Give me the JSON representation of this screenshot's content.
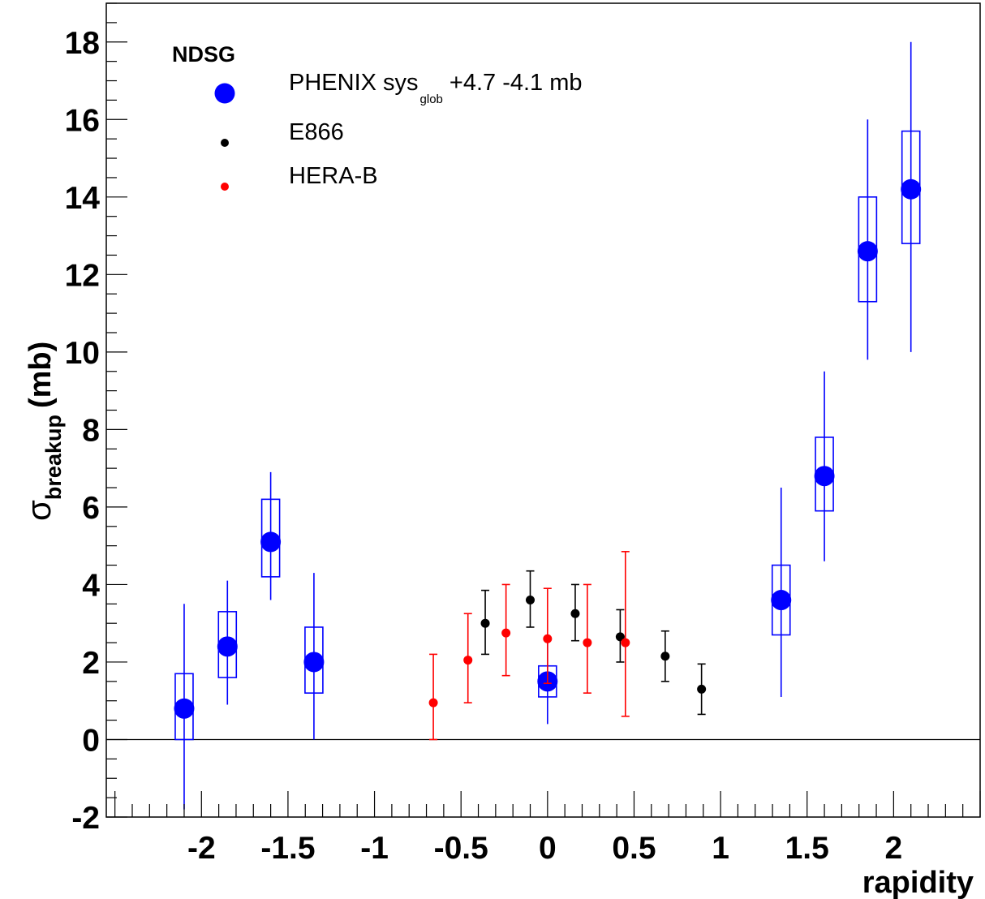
{
  "chart_data": {
    "type": "scatter",
    "title": "",
    "xlabel": "rapidity",
    "ylabel": {
      "symbol": "σ",
      "subscript": "breakup",
      "unit": "(mb)"
    },
    "xlim": [
      -2.55,
      2.5
    ],
    "ylim": [
      -2,
      19
    ],
    "x_ticks": [
      -2,
      -1.5,
      -1,
      -0.5,
      0,
      0.5,
      1,
      1.5,
      2
    ],
    "x_tick_labels": [
      "-2",
      "-1.5",
      "-1",
      "-0.5",
      "0",
      "0.5",
      "1",
      "1.5",
      "2"
    ],
    "y_ticks": [
      -2,
      0,
      2,
      4,
      6,
      8,
      10,
      12,
      14,
      16,
      18
    ],
    "y_tick_labels": [
      "-2",
      "0",
      "2",
      "4",
      "6",
      "8",
      "10",
      "12",
      "14",
      "16",
      "18"
    ],
    "zero_line": true,
    "grid": false,
    "legend": {
      "placement": "top-left",
      "header": "NDSG",
      "entries": [
        {
          "name": "PHENIX sys",
          "subscript": "glob",
          "suffix": "+4.7 -4.1 mb",
          "series": 0
        },
        {
          "name": "E866",
          "series": 1
        },
        {
          "name": "HERA-B",
          "series": 2
        }
      ]
    },
    "series": [
      {
        "name": "PHENIX",
        "color": "#0000ff",
        "marker": "large-circle",
        "points": [
          {
            "x": -2.1,
            "y": 0.8,
            "yerr_low": -1.8,
            "yerr_high": 3.5,
            "sys_low": 0.0,
            "sys_high": 1.7
          },
          {
            "x": -1.85,
            "y": 2.4,
            "yerr_low": 0.9,
            "yerr_high": 4.1,
            "sys_low": 1.6,
            "sys_high": 3.3
          },
          {
            "x": -1.6,
            "y": 5.1,
            "yerr_low": 3.6,
            "yerr_high": 6.9,
            "sys_low": 4.2,
            "sys_high": 6.2
          },
          {
            "x": -1.35,
            "y": 2.0,
            "yerr_low": 0.0,
            "yerr_high": 4.3,
            "sys_low": 1.2,
            "sys_high": 2.9
          },
          {
            "x": 0.0,
            "y": 1.5,
            "yerr_low": 0.4,
            "yerr_high": 2.6,
            "sys_low": 1.1,
            "sys_high": 1.9
          },
          {
            "x": 1.35,
            "y": 3.6,
            "yerr_low": 1.1,
            "yerr_high": 6.5,
            "sys_low": 2.7,
            "sys_high": 4.5
          },
          {
            "x": 1.6,
            "y": 6.8,
            "yerr_low": 4.6,
            "yerr_high": 9.5,
            "sys_low": 5.9,
            "sys_high": 7.8
          },
          {
            "x": 1.85,
            "y": 12.6,
            "yerr_low": 9.8,
            "yerr_high": 16.0,
            "sys_low": 11.3,
            "sys_high": 14.0
          },
          {
            "x": 2.1,
            "y": 14.2,
            "yerr_low": 10.0,
            "yerr_high": 18.0,
            "sys_low": 12.8,
            "sys_high": 15.7
          }
        ]
      },
      {
        "name": "E866",
        "color": "#000000",
        "marker": "small-circle",
        "points": [
          {
            "x": -0.36,
            "y": 3.0,
            "yerr_low": 2.2,
            "yerr_high": 3.85
          },
          {
            "x": -0.1,
            "y": 3.6,
            "yerr_low": 2.9,
            "yerr_high": 4.35
          },
          {
            "x": 0.16,
            "y": 3.25,
            "yerr_low": 2.55,
            "yerr_high": 4.0
          },
          {
            "x": 0.42,
            "y": 2.65,
            "yerr_low": 2.0,
            "yerr_high": 3.35
          },
          {
            "x": 0.68,
            "y": 2.15,
            "yerr_low": 1.5,
            "yerr_high": 2.8
          },
          {
            "x": 0.89,
            "y": 1.3,
            "yerr_low": 0.65,
            "yerr_high": 1.95
          }
        ]
      },
      {
        "name": "HERA-B",
        "color": "#ff0000",
        "marker": "small-circle",
        "points": [
          {
            "x": -0.66,
            "y": 0.95,
            "yerr_low": 0.0,
            "yerr_high": 2.2
          },
          {
            "x": -0.46,
            "y": 2.05,
            "yerr_low": 0.95,
            "yerr_high": 3.25
          },
          {
            "x": -0.24,
            "y": 2.75,
            "yerr_low": 1.65,
            "yerr_high": 4.0
          },
          {
            "x": 0.0,
            "y": 2.6,
            "yerr_low": 1.45,
            "yerr_high": 3.9
          },
          {
            "x": 0.23,
            "y": 2.5,
            "yerr_low": 1.2,
            "yerr_high": 4.0
          },
          {
            "x": 0.45,
            "y": 2.5,
            "yerr_low": 0.6,
            "yerr_high": 4.85
          }
        ]
      }
    ]
  }
}
